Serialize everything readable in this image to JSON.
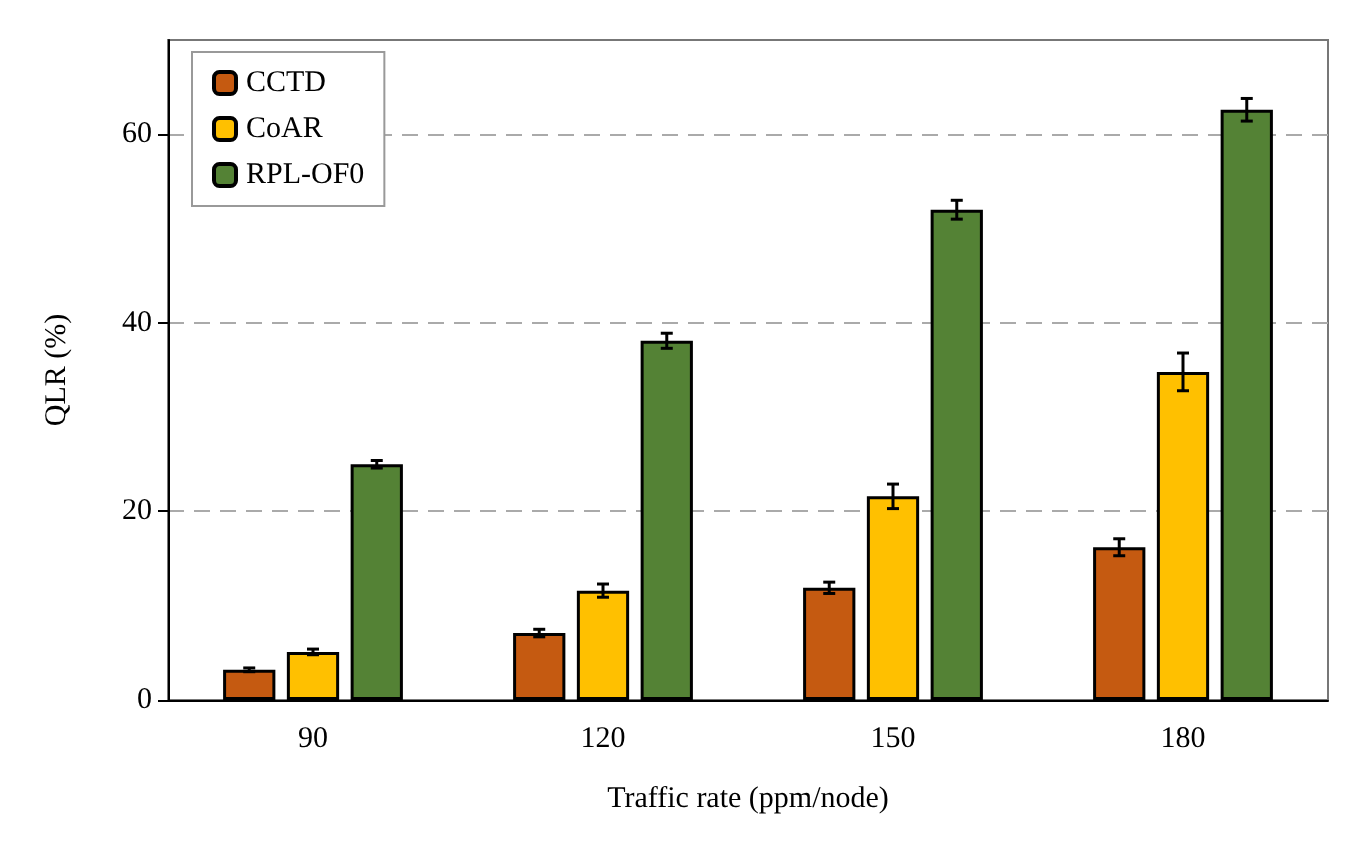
{
  "chart_data": {
    "type": "bar",
    "xlabel": "Traffic rate (ppm/node)",
    "ylabel": "QLR (%)",
    "categories": [
      "90",
      "120",
      "150",
      "180"
    ],
    "series": [
      {
        "name": "CCTD",
        "color": "#c55a11",
        "values": [
          3.2,
          7.1,
          11.9,
          16.2
        ],
        "errors": [
          0.2,
          0.4,
          0.6,
          0.9
        ]
      },
      {
        "name": "CoAR",
        "color": "#ffc000",
        "values": [
          5.1,
          11.6,
          21.6,
          34.8
        ],
        "errors": [
          0.3,
          0.7,
          1.3,
          2.0
        ]
      },
      {
        "name": "RPL-OF0",
        "color": "#548235",
        "values": [
          25.0,
          38.1,
          52.0,
          62.6
        ],
        "errors": [
          0.4,
          0.8,
          1.0,
          1.2
        ]
      }
    ],
    "ylim": [
      0,
      70
    ],
    "yticks": [
      0,
      20,
      40,
      60
    ],
    "grid": "y",
    "legend": "top left"
  }
}
